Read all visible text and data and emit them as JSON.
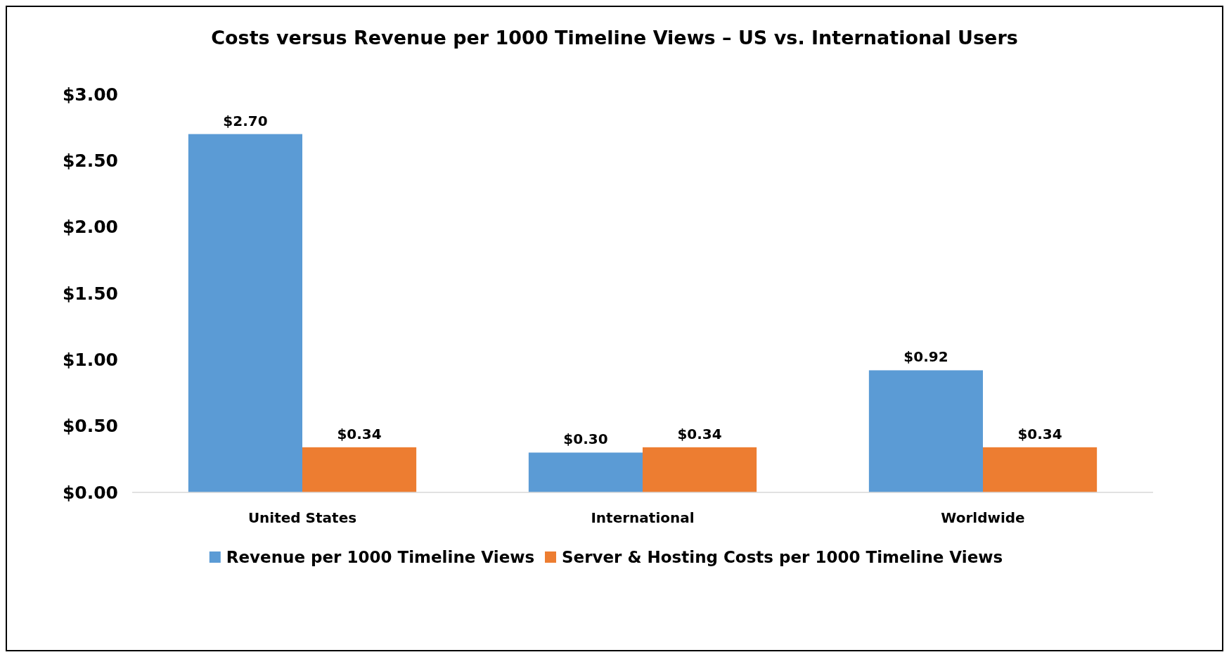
{
  "chart_data": {
    "type": "bar",
    "title": "Costs versus Revenue per 1000 Timeline Views – US vs. International Users",
    "categories": [
      "United States",
      "International",
      "Worldwide"
    ],
    "series": [
      {
        "name": "Revenue per 1000 Timeline Views",
        "color": "#5b9bd5",
        "values": [
          2.7,
          0.3,
          0.92
        ],
        "value_labels": [
          "$2.70",
          "$0.30",
          "$0.92"
        ]
      },
      {
        "name": "Server & Hosting Costs per 1000 Timeline Views",
        "color": "#ed7d31",
        "values": [
          0.34,
          0.34,
          0.34
        ],
        "value_labels": [
          "$0.34",
          "$0.34",
          "$0.34"
        ]
      }
    ],
    "ylim": [
      0,
      3
    ],
    "yticks": [
      {
        "value": 0,
        "label": "$0.00"
      },
      {
        "value": 0.5,
        "label": "$0.50"
      },
      {
        "value": 1,
        "label": "$1.00"
      },
      {
        "value": 1.5,
        "label": "$1.50"
      },
      {
        "value": 2,
        "label": "$2.00"
      },
      {
        "value": 2.5,
        "label": "$2.50"
      },
      {
        "value": 3,
        "label": "$3.00"
      }
    ],
    "grid": false,
    "legend": "bottom"
  }
}
